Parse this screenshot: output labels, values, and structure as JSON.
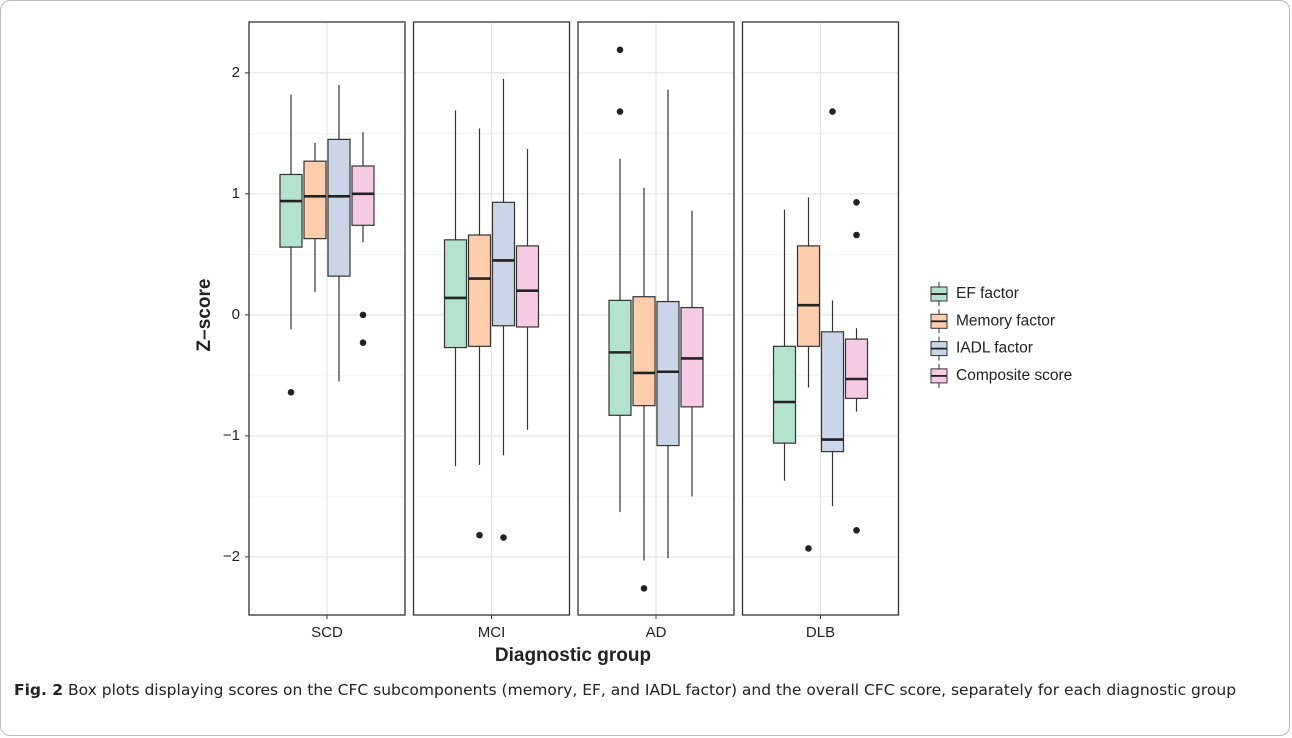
{
  "chart_data": {
    "type": "box",
    "x_label": "Diagnostic group",
    "y_label": "Z–score",
    "categories": [
      "SCD",
      "MCI",
      "AD",
      "DLB"
    ],
    "ylim": [
      -2.48,
      2.42
    ],
    "yticks": [
      {
        "value": -2,
        "label": "−2"
      },
      {
        "value": -1,
        "label": "−1"
      },
      0,
      1,
      2
    ],
    "minor_yticks": [
      -1.5,
      -0.5,
      0.5,
      1.5
    ],
    "grid": true,
    "legend_position": "right",
    "series": [
      {
        "name": "EF factor",
        "color": "#b3e2cd",
        "whisker_low": [
          -0.12,
          -1.25,
          -1.63,
          -1.37
        ],
        "q1": [
          0.56,
          -0.27,
          -0.83,
          -1.06
        ],
        "median": [
          0.94,
          0.14,
          -0.31,
          -0.72
        ],
        "q3": [
          1.16,
          0.62,
          0.12,
          -0.26
        ],
        "whisker_high": [
          1.82,
          1.69,
          1.29,
          0.87
        ],
        "outliers": [
          [
            -0.64
          ],
          [],
          [
            2.19,
            1.68
          ],
          []
        ]
      },
      {
        "name": "Memory factor",
        "color": "#fdcdac",
        "whisker_low": [
          0.19,
          -1.24,
          -2.03,
          -0.6
        ],
        "q1": [
          0.63,
          -0.26,
          -0.75,
          -0.26
        ],
        "median": [
          0.98,
          0.3,
          -0.48,
          0.08
        ],
        "q3": [
          1.27,
          0.66,
          0.15,
          0.57
        ],
        "whisker_high": [
          1.42,
          1.54,
          1.05,
          0.97
        ],
        "outliers": [
          [],
          [
            -1.82
          ],
          [
            -2.26
          ],
          [
            -1.93
          ]
        ]
      },
      {
        "name": "IADL factor",
        "color": "#cbd5e8",
        "whisker_low": [
          -0.55,
          -1.16,
          -2.01,
          -1.58
        ],
        "q1": [
          0.32,
          -0.09,
          -1.08,
          -1.13
        ],
        "median": [
          0.98,
          0.45,
          -0.47,
          -1.03
        ],
        "q3": [
          1.45,
          0.93,
          0.11,
          -0.14
        ],
        "whisker_high": [
          1.9,
          1.95,
          1.86,
          0.12
        ],
        "outliers": [
          [],
          [
            -1.84
          ],
          [],
          [
            1.68
          ]
        ]
      },
      {
        "name": "Composite score",
        "color": "#f4cae4",
        "whisker_low": [
          0.6,
          -0.95,
          -1.5,
          -0.8
        ],
        "q1": [
          0.74,
          -0.1,
          -0.76,
          -0.69
        ],
        "median": [
          1.0,
          0.2,
          -0.36,
          -0.53
        ],
        "q3": [
          1.23,
          0.57,
          0.06,
          -0.2
        ],
        "whisker_high": [
          1.51,
          1.37,
          0.86,
          -0.11
        ],
        "outliers": [
          [
            0.0,
            -0.23
          ],
          [],
          [],
          [
            0.93,
            0.66,
            -1.78
          ]
        ]
      }
    ]
  },
  "caption": {
    "label": "Fig. 2",
    "text": "Box plots displaying scores on the CFC subcomponents (memory, EF, and IADL factor) and the overall CFC score, separately for each diagnostic group"
  }
}
